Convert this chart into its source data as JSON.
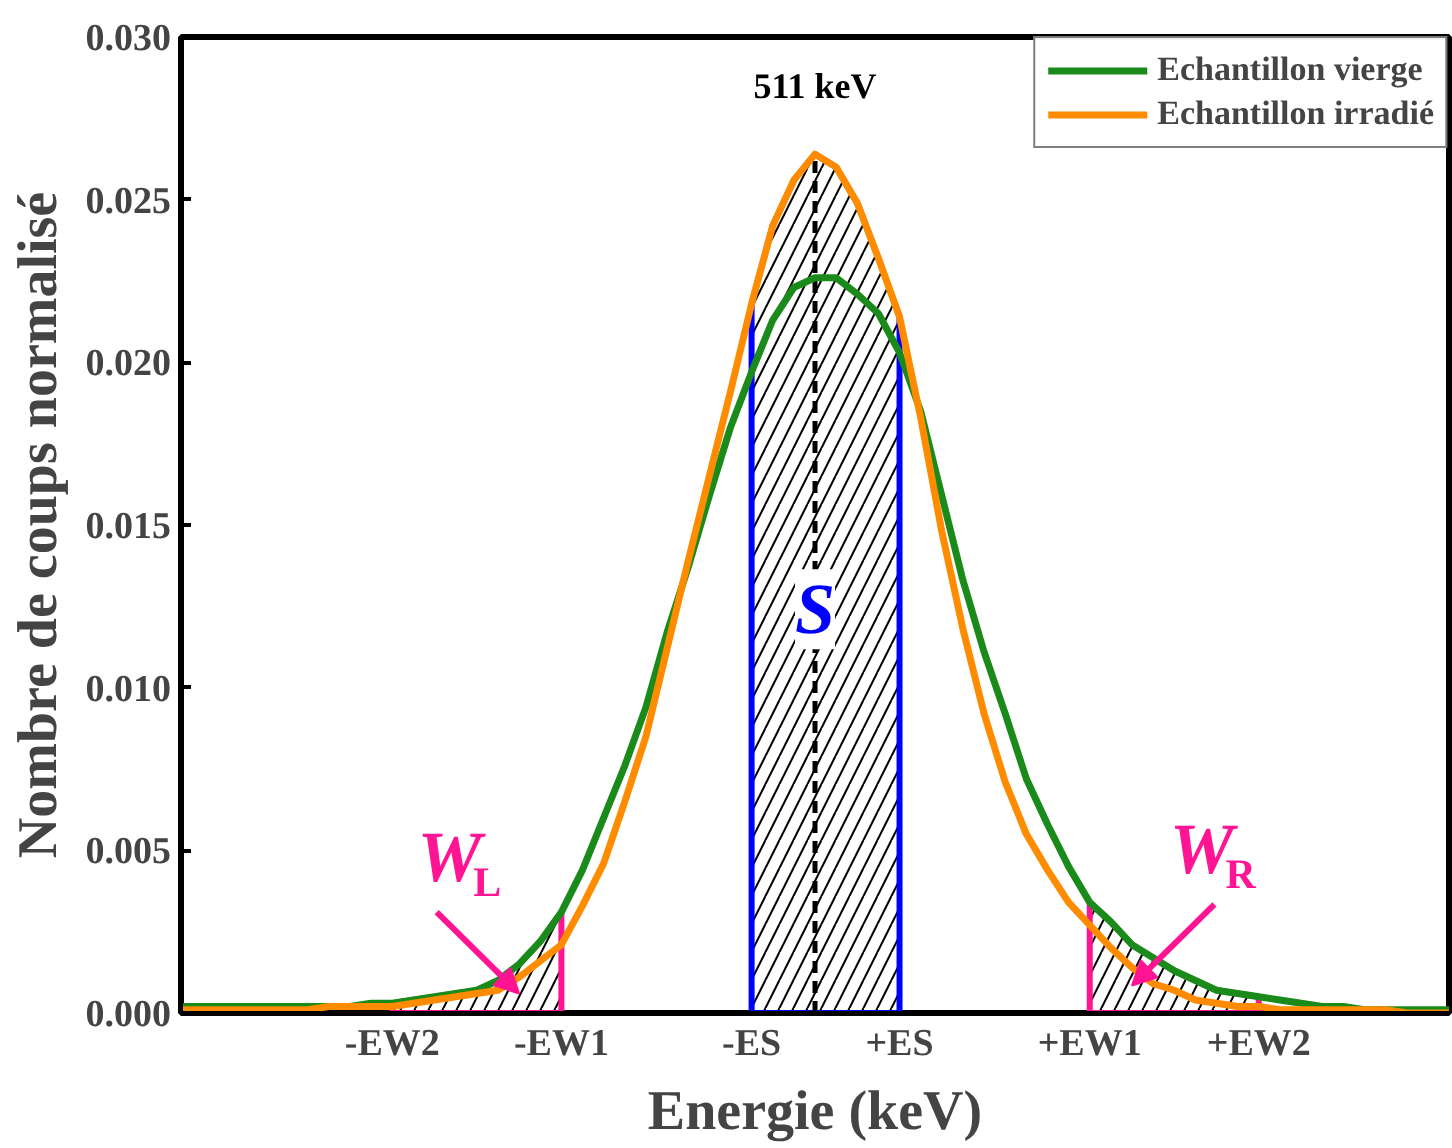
{
  "chart_data": {
    "type": "line",
    "xlabel": "Energie (keV)",
    "ylabel": "Nombre de coups normalisé",
    "categories": [
      null,
      null,
      null,
      null,
      null,
      null,
      null,
      null,
      null,
      null,
      "-EW2",
      null,
      null,
      null,
      null,
      null,
      null,
      null,
      "-EW1",
      null,
      null,
      null,
      null,
      null,
      null,
      null,
      null,
      "-ES",
      null,
      null,
      null,
      null,
      null,
      null,
      "+ES",
      null,
      null,
      null,
      null,
      null,
      null,
      null,
      null,
      "+EW1",
      null,
      null,
      null,
      null,
      null,
      null,
      null,
      "+EW2",
      null,
      null,
      null,
      null,
      null,
      null,
      null,
      null,
      null
    ],
    "series": [
      {
        "name": "Echantillon vierge",
        "color": "#1a8a1a",
        "values": [
          0.0002,
          0.0002,
          0.0002,
          0.0002,
          0.0002,
          0.0002,
          0.0002,
          0.0002,
          0.0002,
          0.0003,
          0.0003,
          0.0004,
          0.0005,
          0.0006,
          0.0007,
          0.001,
          0.0015,
          0.0022,
          0.0031,
          0.0044,
          0.006,
          0.0076,
          0.0094,
          0.0117,
          0.0137,
          0.0159,
          0.018,
          0.0197,
          0.0213,
          0.0223,
          0.0226,
          0.0226,
          0.0221,
          0.0215,
          0.0203,
          0.0185,
          0.0159,
          0.0133,
          0.0111,
          0.0092,
          0.0072,
          0.0058,
          0.0045,
          0.0034,
          0.0028,
          0.0021,
          0.0017,
          0.0013,
          0.001,
          0.0007,
          0.0006,
          0.0005,
          0.0004,
          0.0003,
          0.0002,
          0.0002,
          0.0001,
          0.0001,
          0.0001,
          0.0001,
          0.0001
        ]
      },
      {
        "name": "Echantillon irradié",
        "color": "#ff8c00",
        "values": [
          0.0001,
          0.0001,
          0.0001,
          0.0001,
          0.0001,
          0.0001,
          0.0001,
          0.0002,
          0.0002,
          0.0002,
          0.0002,
          0.0003,
          0.0004,
          0.0005,
          0.0006,
          0.0007,
          0.0011,
          0.0016,
          0.0021,
          0.0033,
          0.0046,
          0.0065,
          0.0085,
          0.0112,
          0.0139,
          0.0165,
          0.0191,
          0.0218,
          0.0242,
          0.0256,
          0.0264,
          0.026,
          0.0249,
          0.0232,
          0.0214,
          0.0183,
          0.0148,
          0.0118,
          0.0092,
          0.0071,
          0.0055,
          0.0044,
          0.0034,
          0.0027,
          0.002,
          0.0014,
          0.0009,
          0.0007,
          0.0004,
          0.0003,
          0.0002,
          0.0002,
          0.0001,
          0.0001,
          0.0001,
          0.0001,
          0.0001,
          0.0001,
          0.0,
          0.0,
          0.0
        ]
      },
      {
        "type": "area",
        "name": "W$_{L}$",
        "color": "#ff1493",
        "values": [
          null,
          null,
          null,
          null,
          null,
          null,
          null,
          null,
          null,
          null,
          0.0003,
          0.0004,
          0.0005,
          0.0006,
          0.0007,
          0.001,
          0.0015,
          0.0022,
          0.0031,
          null,
          null,
          null,
          null,
          null,
          null,
          null,
          null,
          null,
          null,
          null,
          null,
          null,
          null,
          null,
          null,
          null,
          null,
          null,
          null,
          null,
          null,
          null,
          null,
          null,
          null,
          null,
          null,
          null,
          null,
          null,
          null,
          null,
          null,
          null,
          null,
          null,
          null,
          null,
          null,
          null,
          null
        ]
      },
      {
        "type": "area",
        "name": "S",
        "color": "#0000ff",
        "values": [
          null,
          null,
          null,
          null,
          null,
          null,
          null,
          null,
          null,
          null,
          null,
          null,
          null,
          null,
          null,
          null,
          null,
          null,
          null,
          null,
          null,
          null,
          null,
          null,
          null,
          null,
          null,
          0.0218,
          0.0242,
          0.0256,
          0.0264,
          0.026,
          0.0249,
          0.0232,
          0.0214,
          null,
          null,
          null,
          null,
          null,
          null,
          null,
          null,
          null,
          null,
          null,
          null,
          null,
          null,
          null,
          null,
          null,
          null,
          null,
          null,
          null,
          null,
          null,
          null,
          null,
          null
        ]
      },
      {
        "type": "area",
        "name": "W$_{R}$",
        "color": "#ff1493",
        "values": [
          null,
          null,
          null,
          null,
          null,
          null,
          null,
          null,
          null,
          null,
          null,
          null,
          null,
          null,
          null,
          null,
          null,
          null,
          null,
          null,
          null,
          null,
          null,
          null,
          null,
          null,
          null,
          null,
          null,
          null,
          null,
          null,
          null,
          null,
          null,
          null,
          null,
          null,
          null,
          null,
          null,
          null,
          null,
          0.0034,
          0.0028,
          0.0021,
          0.0017,
          0.0013,
          0.001,
          0.0007,
          0.0006,
          0.0005,
          null,
          null,
          null,
          null,
          null,
          null,
          null,
          null,
          null
        ]
      }
    ],
    "ylim": [
      0,
      0.03
    ],
    "yticks": [
      {
        "value": 0,
        "label": "0.000"
      },
      {
        "value": 0.005,
        "label": "0.005"
      },
      {
        "value": 0.01,
        "label": "0.010"
      },
      {
        "value": 0.015,
        "label": "0.015"
      },
      {
        "value": 0.02,
        "label": "0.020"
      },
      {
        "value": 0.025,
        "label": "0.025"
      },
      {
        "value": 0.03,
        "label": "0.030"
      }
    ],
    "annotations": [
      "511 keV"
    ],
    "legend": "top right",
    "grid": false,
    "marker": "none",
    "line_style": "solid"
  }
}
